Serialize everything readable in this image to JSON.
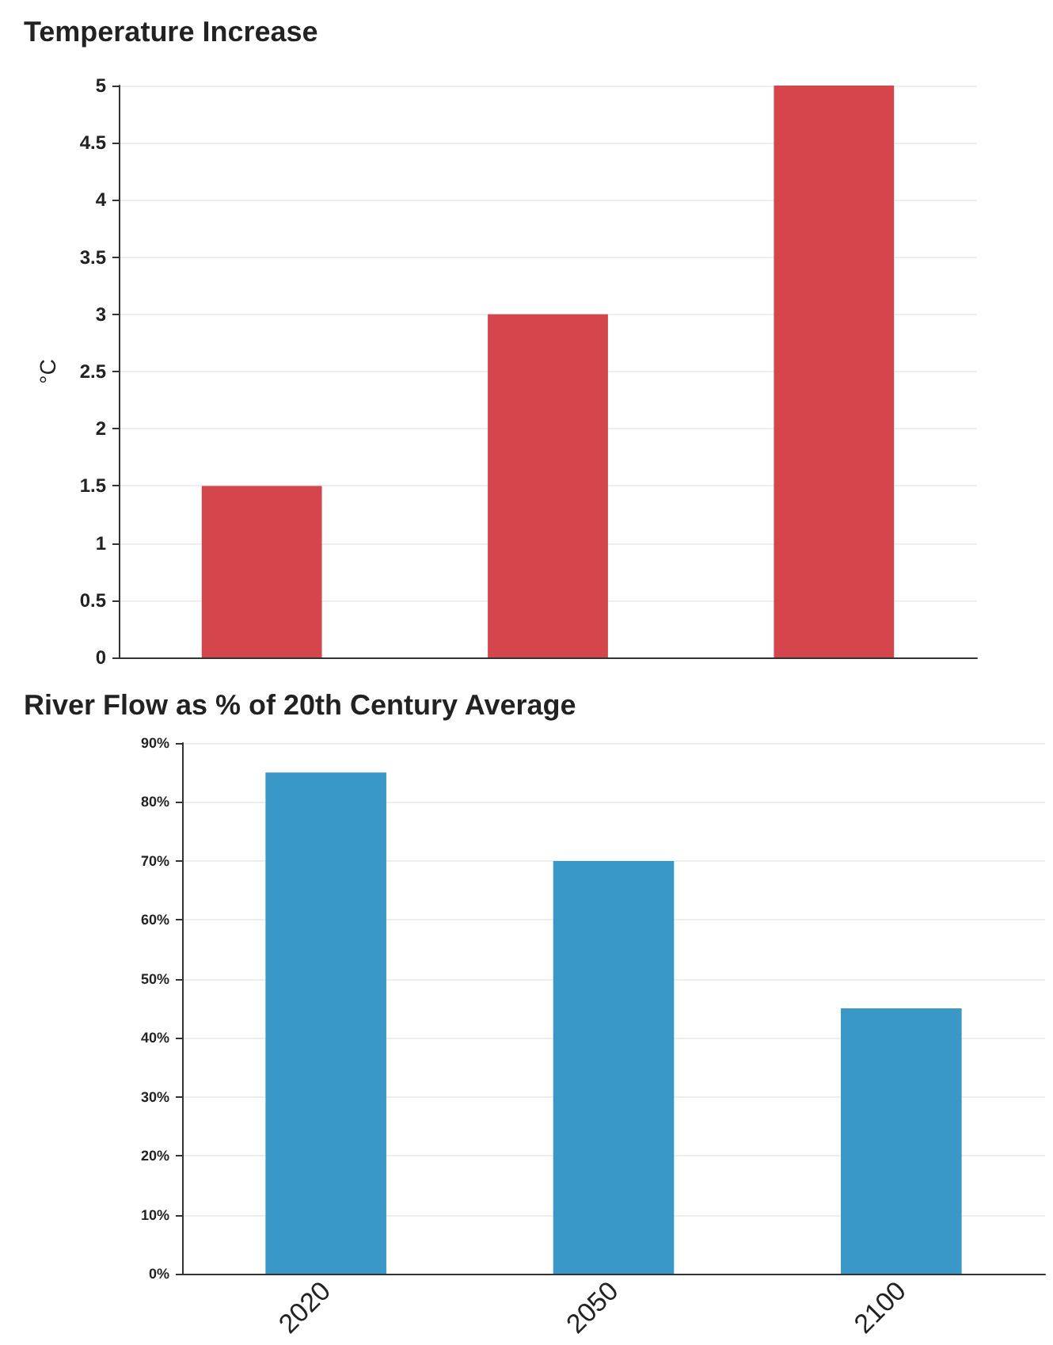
{
  "chart_data": [
    {
      "type": "bar",
      "title": "Temperature Increase",
      "ylabel": "°C",
      "categories": [
        "2020",
        "2050",
        "2100"
      ],
      "values": [
        1.5,
        3,
        5
      ],
      "color": "#d4454c",
      "ylim": [
        0,
        5
      ],
      "yticks": [
        0,
        0.5,
        1,
        1.5,
        2,
        2.5,
        3,
        3.5,
        4,
        4.5,
        5
      ],
      "grid": "y",
      "tick_labels": "y"
    },
    {
      "type": "bar",
      "title": "River Flow as % of 20th Century Average",
      "categories": [
        "2020",
        "2050",
        "2100"
      ],
      "values": [
        85,
        70,
        45
      ],
      "color": "#3a98c8",
      "ylim": [
        0,
        90
      ],
      "yticks": [
        {
          "value": 0,
          "label": "0%"
        },
        {
          "value": 10,
          "label": "10%"
        },
        {
          "value": 20,
          "label": "20%"
        },
        {
          "value": 30,
          "label": "30%"
        },
        {
          "value": 40,
          "label": "40%"
        },
        {
          "value": 50,
          "label": "50%"
        },
        {
          "value": 60,
          "label": "60%"
        },
        {
          "value": 70,
          "label": "70%"
        },
        {
          "value": 80,
          "label": "80%"
        },
        {
          "value": 90,
          "label": "90%"
        }
      ],
      "grid": "y"
    }
  ]
}
